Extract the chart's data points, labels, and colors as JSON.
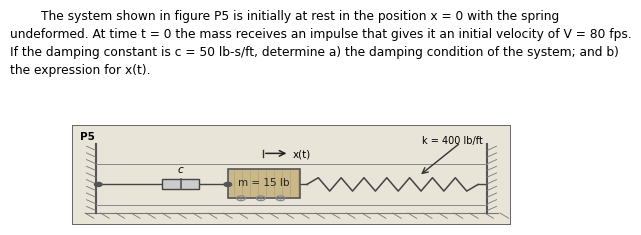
{
  "title_lines": [
    "        The system shown in figure P5 is initially at rest in the position x = 0 with the spring",
    "undeformed. At time t = 0 the mass receives an impulse that gives it an initial velocity of V = 80 fps.",
    "If the damping constant is c = 50 lb-s/ft, determine a) the damping condition of the system; and b)",
    "the expression for x(t)."
  ],
  "fig_label": "P5",
  "mass_label": "m = 15 lb",
  "damper_label": "c",
  "spring_label": "k = 400 lb/ft",
  "disp_label": "x(t)",
  "bg_color": "#ffffff",
  "text_color": "#000000",
  "diagram_bg": "#e8e4d8",
  "title_fontsize": 8.8,
  "fig_width": 5.63,
  "fig_height": 2.18
}
